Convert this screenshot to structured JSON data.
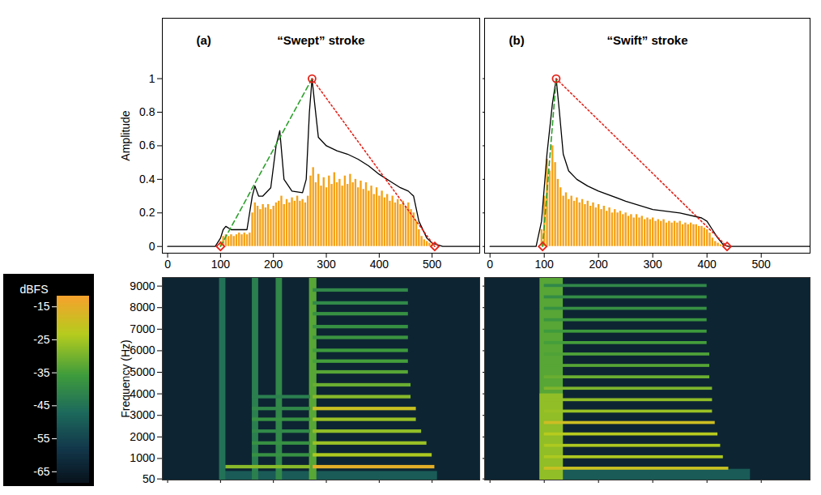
{
  "chart_data": [
    {
      "type": "line",
      "panel": "(a)",
      "title": "“Swept” stroke",
      "y_label": "Amplitude",
      "xlim": [
        -10,
        590
      ],
      "xticks": [
        0,
        100,
        200,
        300,
        400,
        500
      ],
      "ylim": [
        -0.04,
        1.36
      ],
      "yticks": [
        0,
        0.2,
        0.4,
        0.6,
        0.8,
        1
      ],
      "series": [
        {
          "type": "bar",
          "color": "#f5a31a",
          "x": [
            100,
            105,
            110,
            115,
            120,
            125,
            130,
            135,
            140,
            145,
            150,
            155,
            160,
            165,
            170,
            175,
            180,
            185,
            190,
            195,
            200,
            205,
            210,
            215,
            220,
            225,
            230,
            235,
            240,
            245,
            250,
            255,
            260,
            265,
            270,
            275,
            280,
            285,
            290,
            295,
            300,
            305,
            310,
            315,
            320,
            325,
            330,
            335,
            340,
            345,
            350,
            355,
            360,
            365,
            370,
            375,
            380,
            385,
            390,
            395,
            400,
            405,
            410,
            415,
            420,
            425,
            430,
            435,
            440,
            445,
            450,
            455,
            460,
            465,
            470,
            475,
            480,
            485,
            490,
            495,
            500
          ],
          "values": [
            0.03,
            0.06,
            0.07,
            0.06,
            0.07,
            0.06,
            0.07,
            0.08,
            0.07,
            0.08,
            0.07,
            0.08,
            0.2,
            0.26,
            0.24,
            0.22,
            0.25,
            0.23,
            0.25,
            0.22,
            0.24,
            0.26,
            0.27,
            0.3,
            0.25,
            0.28,
            0.26,
            0.29,
            0.27,
            0.3,
            0.27,
            0.28,
            0.26,
            0.3,
            0.42,
            0.47,
            0.38,
            0.43,
            0.36,
            0.41,
            0.35,
            0.42,
            0.37,
            0.44,
            0.38,
            0.4,
            0.36,
            0.42,
            0.37,
            0.43,
            0.38,
            0.4,
            0.35,
            0.39,
            0.34,
            0.38,
            0.33,
            0.36,
            0.31,
            0.35,
            0.3,
            0.33,
            0.29,
            0.31,
            0.27,
            0.3,
            0.26,
            0.28,
            0.25,
            0.27,
            0.24,
            0.26,
            0.22,
            0.2,
            0.15,
            0.1,
            0.06,
            0.04,
            0.03,
            0.02,
            0.01
          ]
        },
        {
          "type": "line",
          "color": "#000000",
          "line_style": "solid",
          "x": [
            0,
            90,
            100,
            105,
            110,
            120,
            150,
            160,
            165,
            172,
            180,
            195,
            205,
            212,
            220,
            235,
            255,
            262,
            268,
            273,
            278,
            285,
            300,
            320,
            340,
            360,
            380,
            400,
            420,
            440,
            455,
            465,
            475,
            490,
            500,
            520,
            590
          ],
          "values": [
            0,
            0,
            0.05,
            0.1,
            0.12,
            0.1,
            0.1,
            0.3,
            0.36,
            0.3,
            0.3,
            0.35,
            0.6,
            0.69,
            0.4,
            0.33,
            0.32,
            0.4,
            0.8,
            1,
            0.85,
            0.65,
            0.6,
            0.57,
            0.55,
            0.52,
            0.48,
            0.43,
            0.39,
            0.35,
            0.33,
            0.3,
            0.15,
            0.05,
            0.02,
            0,
            0
          ]
        },
        {
          "type": "line",
          "color": "#2ca02c",
          "line_style": "dashed",
          "x": [
            100,
            273
          ],
          "values": [
            0,
            1
          ]
        },
        {
          "type": "line",
          "color": "#e3241b",
          "line_style": "dotted",
          "x": [
            273,
            505
          ],
          "values": [
            1,
            0
          ]
        },
        {
          "type": "scatter",
          "color": "#e3241b",
          "marker": "diamond",
          "x": [
            100,
            505
          ],
          "values": [
            0,
            0
          ]
        },
        {
          "type": "scatter",
          "color": "#e3241b",
          "marker": "circle",
          "x": [
            273
          ],
          "values": [
            1
          ]
        }
      ]
    },
    {
      "type": "line",
      "panel": "(b)",
      "title": "“Swift” stroke",
      "tick_labels": "x",
      "xlim": [
        -10,
        590
      ],
      "xticks": [
        0,
        100,
        200,
        300,
        400,
        500
      ],
      "ylim": [
        -0.04,
        1.36
      ],
      "yticks": [
        0,
        0.2,
        0.4,
        0.6,
        0.8,
        1
      ],
      "series": [
        {
          "type": "bar",
          "color": "#f5a31a",
          "x": [
            95,
            100,
            105,
            110,
            115,
            120,
            125,
            130,
            135,
            140,
            145,
            150,
            155,
            160,
            165,
            170,
            175,
            180,
            185,
            190,
            195,
            200,
            205,
            210,
            215,
            220,
            225,
            230,
            235,
            240,
            245,
            250,
            255,
            260,
            265,
            270,
            275,
            280,
            285,
            290,
            295,
            300,
            305,
            310,
            315,
            320,
            325,
            330,
            335,
            340,
            345,
            350,
            355,
            360,
            365,
            370,
            375,
            380,
            385,
            390,
            395,
            400,
            405,
            410,
            415,
            420,
            425,
            430
          ],
          "values": [
            0.1,
            0.3,
            0.52,
            0.45,
            0.6,
            0.5,
            0.4,
            0.35,
            0.3,
            0.32,
            0.28,
            0.3,
            0.27,
            0.29,
            0.26,
            0.28,
            0.25,
            0.27,
            0.24,
            0.26,
            0.23,
            0.25,
            0.22,
            0.24,
            0.21,
            0.23,
            0.2,
            0.22,
            0.2,
            0.21,
            0.19,
            0.2,
            0.18,
            0.19,
            0.17,
            0.19,
            0.17,
            0.18,
            0.16,
            0.17,
            0.16,
            0.17,
            0.15,
            0.16,
            0.15,
            0.16,
            0.14,
            0.15,
            0.14,
            0.15,
            0.14,
            0.15,
            0.13,
            0.14,
            0.13,
            0.14,
            0.13,
            0.13,
            0.12,
            0.12,
            0.11,
            0.1,
            0.08,
            0.05,
            0.03,
            0.02,
            0.01,
            0.01
          ]
        },
        {
          "type": "line",
          "color": "#000000",
          "line_style": "solid",
          "x": [
            0,
            85,
            95,
            105,
            115,
            122,
            128,
            135,
            145,
            160,
            180,
            200,
            250,
            300,
            350,
            390,
            400,
            410,
            420,
            430,
            440,
            590
          ],
          "values": [
            0,
            0,
            0.15,
            0.55,
            0.85,
            1,
            0.8,
            0.55,
            0.45,
            0.4,
            0.36,
            0.33,
            0.27,
            0.22,
            0.2,
            0.17,
            0.15,
            0.1,
            0.05,
            0.01,
            0,
            0
          ]
        },
        {
          "type": "line",
          "color": "#2ca02c",
          "line_style": "dashed",
          "x": [
            97,
            122
          ],
          "values": [
            0,
            1
          ]
        },
        {
          "type": "line",
          "color": "#e3241b",
          "line_style": "dotted",
          "x": [
            122,
            437
          ],
          "values": [
            1,
            0
          ]
        },
        {
          "type": "scatter",
          "color": "#e3241b",
          "marker": "diamond",
          "x": [
            97,
            437
          ],
          "values": [
            0,
            0
          ]
        },
        {
          "type": "scatter",
          "color": "#e3241b",
          "marker": "circle",
          "x": [
            122
          ],
          "values": [
            1
          ]
        }
      ]
    },
    {
      "type": "heatmap",
      "y_label": "Frequency (Hz)",
      "tick_labels": "y",
      "xlim": [
        -10,
        590
      ],
      "xticks": [
        0,
        100,
        200,
        300,
        400,
        500
      ],
      "ylim": [
        0,
        9400
      ],
      "yticks": [
        50,
        1000,
        2000,
        3000,
        4000,
        5000,
        6000,
        7000,
        8000,
        9000
      ],
      "cells": [
        [
          -10,
          590,
          0,
          9400,
          -63
        ],
        [
          100,
          510,
          0,
          400,
          -50
        ],
        [
          98,
          110,
          0,
          9400,
          -45
        ],
        [
          160,
          172,
          0,
          9400,
          -42
        ],
        [
          205,
          217,
          0,
          9400,
          -40
        ],
        [
          268,
          282,
          0,
          9400,
          -33
        ],
        [
          110,
          270,
          520,
          680,
          -28
        ],
        [
          160,
          270,
          1070,
          1230,
          -38
        ],
        [
          160,
          270,
          1620,
          1780,
          -38
        ],
        [
          160,
          270,
          2170,
          2330,
          -40
        ],
        [
          160,
          270,
          2720,
          2880,
          -38
        ],
        [
          160,
          270,
          3220,
          3380,
          -40
        ],
        [
          160,
          270,
          3770,
          3930,
          -42
        ],
        [
          275,
          505,
          520,
          680,
          -15
        ],
        [
          275,
          500,
          1070,
          1230,
          -24
        ],
        [
          275,
          490,
          1620,
          1780,
          -26
        ],
        [
          275,
          480,
          2170,
          2330,
          -27
        ],
        [
          275,
          470,
          2720,
          2880,
          -26
        ],
        [
          275,
          470,
          3220,
          3380,
          -20
        ],
        [
          275,
          460,
          3770,
          3930,
          -28
        ],
        [
          275,
          460,
          4320,
          4480,
          -31
        ],
        [
          275,
          455,
          4920,
          5080,
          -33
        ],
        [
          275,
          455,
          5420,
          5580,
          -35
        ],
        [
          275,
          455,
          5920,
          6080,
          -36
        ],
        [
          275,
          455,
          6520,
          6680,
          -37
        ],
        [
          275,
          455,
          7020,
          7180,
          -38
        ],
        [
          275,
          455,
          7620,
          7780,
          -38
        ],
        [
          275,
          455,
          8120,
          8280,
          -40
        ],
        [
          275,
          455,
          8720,
          8880,
          -40
        ]
      ],
      "colorbar": {
        "label": "dBFS",
        "range": [
          -68,
          -12
        ],
        "ticks": [
          -15,
          -25,
          -35,
          -45,
          -55,
          -65
        ]
      }
    },
    {
      "type": "heatmap",
      "tick_labels": false,
      "xlim": [
        -10,
        590
      ],
      "xticks": [
        0,
        100,
        200,
        300,
        400,
        500
      ],
      "ylim": [
        0,
        9400
      ],
      "yticks": [
        50,
        1000,
        2000,
        3000,
        4000,
        5000,
        6000,
        7000,
        8000,
        9000
      ],
      "cells": [
        [
          -10,
          590,
          0,
          9400,
          -63
        ],
        [
          100,
          480,
          0,
          500,
          -50
        ],
        [
          92,
          135,
          0,
          9400,
          -33
        ],
        [
          92,
          135,
          0,
          4000,
          -27
        ],
        [
          100,
          440,
          460,
          600,
          -20
        ],
        [
          100,
          430,
          990,
          1130,
          -24
        ],
        [
          100,
          425,
          1520,
          1660,
          -24
        ],
        [
          100,
          420,
          2050,
          2190,
          -23
        ],
        [
          100,
          415,
          2580,
          2720,
          -19
        ],
        [
          100,
          410,
          3110,
          3250,
          -26
        ],
        [
          100,
          410,
          3640,
          3780,
          -27
        ],
        [
          100,
          410,
          4170,
          4310,
          -29
        ],
        [
          100,
          405,
          4700,
          4840,
          -31
        ],
        [
          100,
          405,
          5230,
          5370,
          -33
        ],
        [
          100,
          405,
          5760,
          5900,
          -34
        ],
        [
          100,
          400,
          6290,
          6430,
          -35
        ],
        [
          100,
          400,
          6820,
          6960,
          -36
        ],
        [
          100,
          400,
          7350,
          7490,
          -37
        ],
        [
          100,
          400,
          7880,
          8020,
          -38
        ],
        [
          100,
          400,
          8410,
          8550,
          -39
        ],
        [
          100,
          400,
          8940,
          9080,
          -40
        ]
      ]
    }
  ]
}
